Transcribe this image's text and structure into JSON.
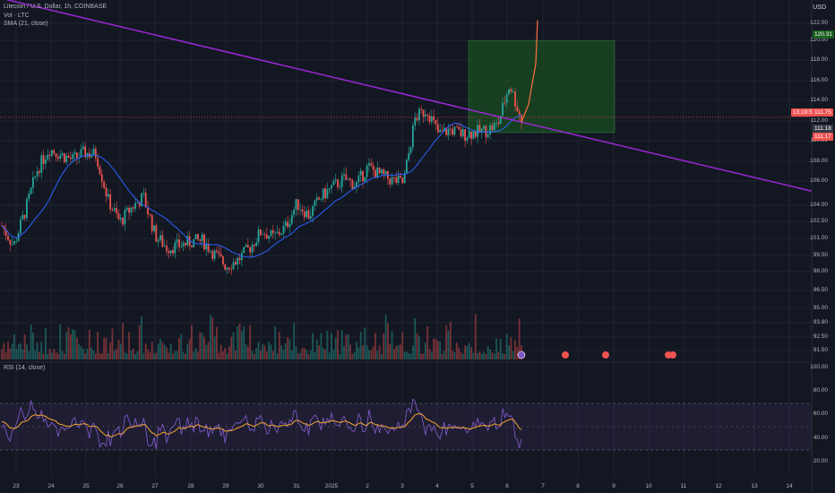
{
  "header": {
    "symbol_line": "Litecoin / U.S. Dollar, 1h, COINBASE",
    "vol_line": "Vol · LTC",
    "sma_line": "SMA (21, close)",
    "currency": "USD"
  },
  "rsi_panel": {
    "label": "RSI (14, close)",
    "ticks": [
      "100.00",
      "80.00",
      "60.00",
      "40.00",
      "20.00"
    ]
  },
  "price_axis": {
    "ticks": [
      "122.00",
      "120.00",
      "118.00",
      "116.00",
      "114.00",
      "112.00",
      "110.00",
      "108.00",
      "106.00",
      "104.00",
      "102.50",
      "101.00",
      "99.50",
      "98.00",
      "96.50",
      "95.00",
      "93.80",
      "92.50",
      "91.50"
    ],
    "tag_target": "120.31",
    "tag_current": "111.75",
    "tag_countdown": "13:19:55",
    "tag_stop": "111.18",
    "tag_low": "111.17"
  },
  "date_axis": [
    "23",
    "24",
    "25",
    "26",
    "27",
    "28",
    "29",
    "30",
    "31",
    "2025",
    "2",
    "3",
    "4",
    "5",
    "6",
    "7",
    "8",
    "9",
    "10",
    "11",
    "12",
    "13",
    "14"
  ],
  "colors": {
    "background": "#131722",
    "bull": "#26a69a",
    "bear": "#ef5350",
    "trendline": "#9c27d6",
    "sma": "#2962ff",
    "rsi_line": "#7e57c2",
    "rsi_ma": "#f6a531",
    "projection": "#ff7043",
    "target_zone": "#1b5e20"
  },
  "chart_data": {
    "type": "candlestick",
    "trendline": {
      "from": {
        "date": "Dec 22",
        "price": 124.5
      },
      "to": {
        "date": "Jan 14",
        "price": 105.4
      }
    },
    "target_zone": {
      "top": 120.3,
      "bottom": 111.2
    },
    "close_path": [
      102.0,
      100.0,
      103.5,
      107.5,
      109.6,
      109.0,
      108.5,
      109.2,
      109.0,
      104.5,
      102.3,
      103.8,
      104.8,
      101.0,
      99.8,
      100.0,
      100.4,
      100.5,
      99.2,
      98.0,
      98.6,
      99.8,
      101.5,
      100.8,
      101.8,
      104.2,
      103.0,
      104.8,
      105.8,
      106.6,
      106.0,
      107.8,
      107.0,
      106.5,
      106.2,
      112.6,
      113.5,
      111.0,
      111.5,
      111.0,
      111.2,
      111.4,
      112.0,
      116.0,
      112.4
    ],
    "projection_end": 122.3
  }
}
